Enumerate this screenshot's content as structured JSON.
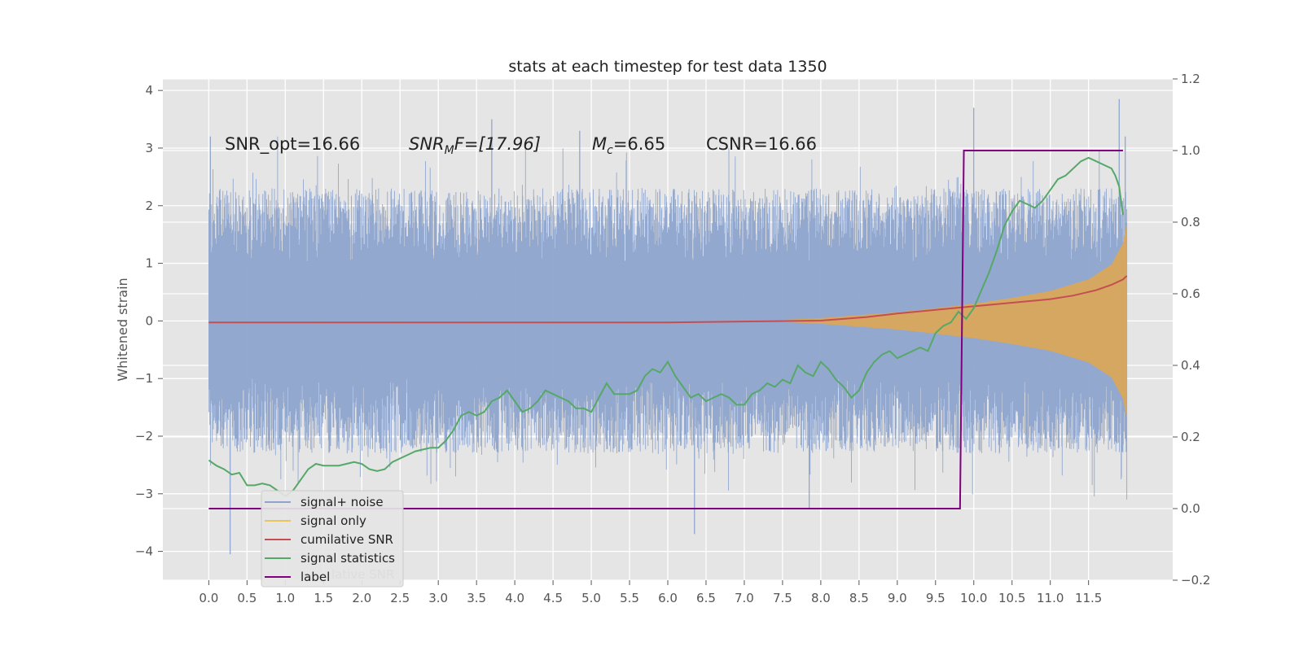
{
  "chart_data": {
    "type": "line",
    "title": "stats at each timestep for test data 1350",
    "ylabel": "Whitened strain",
    "xlim": [
      -0.6,
      12.6
    ],
    "ylim": [
      -4.5,
      4.2
    ],
    "y2lim": [
      -0.2,
      1.2
    ],
    "grid": true,
    "legend_position": "lower-left",
    "x_ticks": [
      0.0,
      0.5,
      1.0,
      1.5,
      2.0,
      2.5,
      3.0,
      3.5,
      4.0,
      4.5,
      5.0,
      5.5,
      6.0,
      6.5,
      7.0,
      7.5,
      8.0,
      8.5,
      9.0,
      9.5,
      10.0,
      10.5,
      11.0,
      11.5
    ],
    "x_tick_labels": [
      "0.0",
      "0.5",
      "1.0",
      "1.5",
      "2.0",
      "2.5",
      "3.0",
      "3.5",
      "4.0",
      "4.5",
      "5.0",
      "5.5",
      "6.0",
      "6.5",
      "7.0",
      "7.5",
      "8.0",
      "8.5",
      "9.0",
      "9.5",
      "10.0",
      "10.5",
      "11.0",
      "11.5"
    ],
    "y_ticks": [
      -4,
      -3,
      -2,
      -1,
      0,
      1,
      2,
      3,
      4
    ],
    "y_tick_labels": [
      "−4",
      "−3",
      "−2",
      "−1",
      "0",
      "1",
      "2",
      "3",
      "4"
    ],
    "y2_ticks": [
      -0.2,
      0.0,
      0.2,
      0.4,
      0.6,
      0.8,
      1.0,
      1.2
    ],
    "y2_tick_labels": [
      "−0.2",
      "0.0",
      "0.2",
      "0.4",
      "0.6",
      "0.8",
      "1.0",
      "1.2"
    ],
    "annotations": {
      "snr_opt": "SNR_opt=16.66",
      "snr_mf_main": "SNR",
      "snr_mf_sub": "M",
      "snr_mf_rest": "F=[17.96]",
      "mc_main": "M",
      "mc_sub": "c",
      "mc_rest": "=6.65",
      "csnr": "CSNR=16.66"
    },
    "series": [
      {
        "name": "signal+ noise",
        "axis": "left",
        "color": "#8ea4cc",
        "style": "dense noise band",
        "x_range": [
          0.0,
          12.0
        ],
        "typical_range": [
          -2.0,
          2.0
        ],
        "extremes": [
          -4.05,
          3.85
        ],
        "spikes": [
          [
            0.02,
            3.2
          ],
          [
            0.28,
            -4.05
          ],
          [
            0.9,
            3.2
          ],
          [
            3.7,
            3.5
          ],
          [
            4.85,
            3.3
          ],
          [
            6.35,
            -3.7
          ],
          [
            7.85,
            -3.25
          ],
          [
            10.0,
            3.7
          ],
          [
            11.9,
            3.85
          ],
          [
            11.98,
            3.2
          ],
          [
            12.0,
            -3.1
          ]
        ]
      },
      {
        "name": "signal only",
        "axis": "left",
        "color": "#d9a75a",
        "style": "chirp envelope",
        "x": [
          7.5,
          8.0,
          8.5,
          9.0,
          9.5,
          10.0,
          10.5,
          11.0,
          11.5,
          11.8,
          11.95,
          12.0
        ],
        "amplitude": [
          0.02,
          0.05,
          0.1,
          0.15,
          0.22,
          0.3,
          0.4,
          0.52,
          0.72,
          0.98,
          1.35,
          1.7
        ]
      },
      {
        "name": "cumilative SNR",
        "axis": "right",
        "color": "#c44e52",
        "x": [
          0.0,
          6.0,
          8.0,
          8.6,
          9.0,
          9.5,
          10.0,
          10.5,
          11.0,
          11.3,
          11.6,
          11.8,
          11.95,
          12.0
        ],
        "values": [
          0.52,
          0.52,
          0.525,
          0.535,
          0.545,
          0.555,
          0.565,
          0.575,
          0.585,
          0.595,
          0.61,
          0.625,
          0.64,
          0.65
        ]
      },
      {
        "name": "signal statistics",
        "axis": "right",
        "color": "#55a868",
        "x": [
          0.0,
          0.1,
          0.2,
          0.3,
          0.4,
          0.5,
          0.6,
          0.7,
          0.8,
          0.9,
          1.0,
          1.1,
          1.2,
          1.3,
          1.4,
          1.5,
          1.6,
          1.7,
          1.8,
          1.9,
          2.0,
          2.1,
          2.2,
          2.3,
          2.4,
          2.5,
          2.6,
          2.7,
          2.8,
          2.9,
          3.0,
          3.1,
          3.2,
          3.3,
          3.4,
          3.5,
          3.6,
          3.7,
          3.8,
          3.9,
          4.0,
          4.1,
          4.2,
          4.3,
          4.4,
          4.5,
          4.6,
          4.7,
          4.8,
          4.9,
          5.0,
          5.1,
          5.2,
          5.3,
          5.4,
          5.5,
          5.6,
          5.7,
          5.8,
          5.9,
          6.0,
          6.1,
          6.2,
          6.3,
          6.4,
          6.5,
          6.6,
          6.7,
          6.8,
          6.9,
          7.0,
          7.1,
          7.2,
          7.3,
          7.4,
          7.5,
          7.6,
          7.7,
          7.8,
          7.9,
          8.0,
          8.1,
          8.2,
          8.3,
          8.4,
          8.5,
          8.6,
          8.7,
          8.8,
          8.9,
          9.0,
          9.1,
          9.2,
          9.3,
          9.4,
          9.5,
          9.6,
          9.7,
          9.8,
          9.9,
          10.0,
          10.1,
          10.2,
          10.3,
          10.4,
          10.5,
          10.6,
          10.7,
          10.8,
          10.9,
          11.0,
          11.1,
          11.2,
          11.3,
          11.4,
          11.5,
          11.6,
          11.7,
          11.8,
          11.85,
          11.9,
          11.95
        ],
        "values": [
          0.135,
          0.12,
          0.11,
          0.095,
          0.1,
          0.065,
          0.065,
          0.07,
          0.065,
          0.05,
          0.035,
          0.05,
          0.08,
          0.11,
          0.125,
          0.12,
          0.12,
          0.12,
          0.125,
          0.13,
          0.125,
          0.11,
          0.105,
          0.11,
          0.13,
          0.14,
          0.15,
          0.16,
          0.165,
          0.17,
          0.17,
          0.19,
          0.22,
          0.26,
          0.27,
          0.26,
          0.27,
          0.3,
          0.31,
          0.33,
          0.3,
          0.27,
          0.28,
          0.3,
          0.33,
          0.32,
          0.31,
          0.3,
          0.28,
          0.28,
          0.27,
          0.31,
          0.35,
          0.32,
          0.32,
          0.32,
          0.33,
          0.37,
          0.39,
          0.38,
          0.41,
          0.37,
          0.34,
          0.31,
          0.32,
          0.3,
          0.31,
          0.32,
          0.31,
          0.29,
          0.29,
          0.32,
          0.33,
          0.35,
          0.34,
          0.36,
          0.35,
          0.4,
          0.38,
          0.37,
          0.41,
          0.39,
          0.36,
          0.34,
          0.31,
          0.33,
          0.38,
          0.41,
          0.43,
          0.44,
          0.42,
          0.43,
          0.44,
          0.45,
          0.44,
          0.49,
          0.51,
          0.52,
          0.55,
          0.53,
          0.56,
          0.61,
          0.66,
          0.72,
          0.79,
          0.83,
          0.86,
          0.85,
          0.84,
          0.86,
          0.89,
          0.92,
          0.93,
          0.95,
          0.97,
          0.98,
          0.97,
          0.96,
          0.95,
          0.93,
          0.9,
          0.82
        ]
      },
      {
        "name": "label",
        "axis": "right",
        "color": "#800080",
        "x": [
          0.0,
          9.82,
          9.87,
          11.95
        ],
        "values": [
          0.0,
          0.0,
          1.0,
          1.0
        ]
      }
    ],
    "legend_ghost_text": "lative SNR"
  }
}
